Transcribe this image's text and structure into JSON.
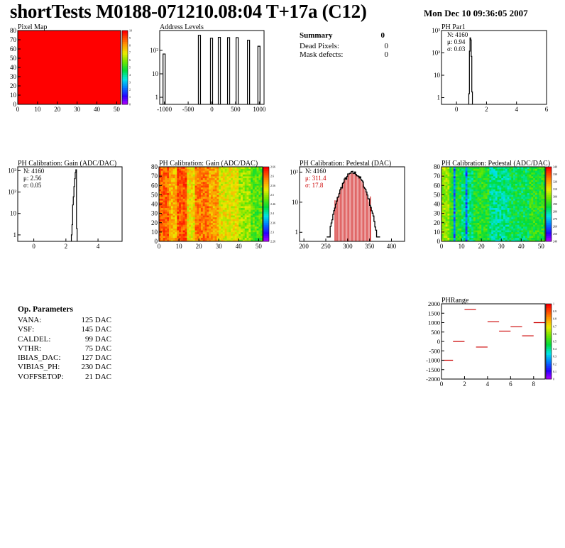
{
  "header": {
    "title": "shortTests M0188-071210.08:04 T+17a (C12)",
    "date": "Mon Dec 10 09:36:05 2007"
  },
  "summary": {
    "title": "Summary",
    "total": "0",
    "rows": [
      {
        "label": "Dead Pixels:",
        "value": "0"
      },
      {
        "label": "Mask defects:",
        "value": "0"
      }
    ]
  },
  "op_params": {
    "title": "Op. Parameters",
    "rows": [
      {
        "name": "VANA:",
        "value": "125 DAC"
      },
      {
        "name": "VSF:",
        "value": "145 DAC"
      },
      {
        "name": "CALDEL:",
        "value": "99 DAC"
      },
      {
        "name": "VTHR:",
        "value": "75 DAC"
      },
      {
        "name": "IBIAS_DAC:",
        "value": "127 DAC"
      },
      {
        "name": "VIBIAS_PH:",
        "value": "230 DAC"
      },
      {
        "name": "VOFFSETOP:",
        "value": "21 DAC"
      }
    ]
  },
  "chart_data": [
    {
      "id": "pixelmap",
      "type": "heatmap",
      "title": "Pixel Map",
      "xlim": [
        0,
        52
      ],
      "ylim": [
        0,
        80
      ],
      "x_ticks": [
        0,
        10,
        20,
        30,
        40,
        50
      ],
      "y_ticks": [
        0,
        10,
        20,
        30,
        40,
        50,
        60,
        70,
        80
      ],
      "fill_value": 10,
      "color": "#ff0000",
      "z_ticks": [
        "0",
        "1",
        "2",
        "3",
        "4",
        "5",
        "6",
        "7",
        "8",
        "9",
        "10"
      ]
    },
    {
      "id": "address",
      "type": "bar",
      "title": "Address Levels",
      "log_y": true,
      "xlim": [
        -1100,
        1100
      ],
      "ylim": [
        0.5,
        700
      ],
      "x_ticks": [
        "-1000",
        "-500",
        "0",
        "500",
        "1000"
      ],
      "y_ticks": [
        "1",
        "10",
        "10²"
      ],
      "peaks": [
        {
          "x": -1000,
          "y": 70
        },
        {
          "x": -255,
          "y": 440
        },
        {
          "x": 0,
          "y": 330
        },
        {
          "x": 165,
          "y": 360
        },
        {
          "x": 360,
          "y": 350
        },
        {
          "x": 540,
          "y": 350
        },
        {
          "x": 780,
          "y": 270
        },
        {
          "x": 1000,
          "y": 150
        }
      ]
    },
    {
      "id": "phpar1",
      "type": "bar",
      "title": "PH Par1",
      "log_y": true,
      "xlim": [
        -1,
        6
      ],
      "ylim": [
        0.5,
        1000
      ],
      "x_ticks": [
        "0",
        "2",
        "4",
        "6"
      ],
      "y_ticks": [
        "1",
        "10",
        "10²",
        "10³"
      ],
      "stats": [
        {
          "label": "N: 4160"
        },
        {
          "label": "μ: 0.94"
        },
        {
          "label": "σ: 0.03"
        }
      ],
      "x": [
        0.84,
        0.88,
        0.92,
        0.96,
        1.0,
        1.04
      ],
      "values": [
        1.5,
        120,
        470,
        380,
        70,
        1.8
      ]
    },
    {
      "id": "gain1d",
      "type": "bar",
      "title": "PH Calibration: Gain (ADC/DAC)",
      "log_y": true,
      "xlim": [
        -1,
        5.5
      ],
      "ylim": [
        0.5,
        1500
      ],
      "x_ticks": [
        "0",
        "2",
        "4"
      ],
      "y_ticks": [
        "1",
        "10",
        "10²",
        "10³"
      ],
      "stats": [
        {
          "label": "N: 4160"
        },
        {
          "label": "μ: 2.56"
        },
        {
          "label": "σ: 0.05"
        }
      ],
      "x": [
        2.36,
        2.4,
        2.44,
        2.48,
        2.52,
        2.56,
        2.6,
        2.64,
        2.68
      ],
      "values": [
        1,
        3,
        25,
        60,
        180,
        420,
        820,
        1100,
        2
      ]
    },
    {
      "id": "gain2d",
      "type": "heatmap",
      "title": "PH Calibration: Gain (ADC/DAC)",
      "xlim": [
        0,
        52
      ],
      "ylim": [
        0,
        80
      ],
      "x_ticks": [
        0,
        10,
        20,
        30,
        40,
        50
      ],
      "y_ticks": [
        0,
        10,
        20,
        30,
        40,
        50,
        60,
        70,
        80
      ],
      "z_ticks": [
        "2.26",
        "2.3",
        "2.36",
        "2.4",
        "2.46",
        "2.5",
        "2.56",
        "2.6",
        "2.66"
      ]
    },
    {
      "id": "pedestal1d",
      "type": "bar",
      "title": "PH Calibration: Pedestal (DAC)",
      "log_y": true,
      "xlim": [
        190,
        430
      ],
      "ylim": [
        0.5,
        150
      ],
      "x_ticks": [
        "200",
        "250",
        "300",
        "350",
        "400"
      ],
      "y_ticks": [
        "1",
        "10",
        "10²"
      ],
      "stats": [
        {
          "label": "N: 4160",
          "color": "#000000"
        },
        {
          "label": "μ: 311.4",
          "color": "#cc0000"
        },
        {
          "label": "σ: 17.8",
          "color": "#cc0000"
        }
      ],
      "mean": 311.4,
      "sigma": 17.8,
      "fit_range": [
        271,
        352
      ],
      "fit_color": "#cc0000"
    },
    {
      "id": "pedestal2d",
      "type": "heatmap",
      "title": "PH Calibration: Pedestal (ADC/DAC)",
      "xlim": [
        0,
        52
      ],
      "ylim": [
        0,
        80
      ],
      "x_ticks": [
        0,
        10,
        20,
        30,
        40,
        50
      ],
      "y_ticks": [
        0,
        10,
        20,
        30,
        40,
        50,
        60,
        70,
        80
      ],
      "z_ticks": [
        "240",
        "250",
        "260",
        "270",
        "280",
        "290",
        "300",
        "310",
        "320",
        "330",
        "340"
      ]
    },
    {
      "id": "phrange",
      "type": "scatter",
      "title": "PHRange",
      "xlim": [
        0,
        9
      ],
      "ylim": [
        -2000,
        2000
      ],
      "x_ticks": [
        "0",
        "2",
        "4",
        "6",
        "8"
      ],
      "y_ticks": [
        "-2000",
        "-1500",
        "-1000",
        "-500",
        "0",
        "500",
        "1000",
        "1500",
        "2000"
      ],
      "z_ticks": [
        "0",
        "0.1",
        "0.2",
        "0.3",
        "0.4",
        "0.5",
        "0.6",
        "0.7",
        "0.8",
        "0.9",
        "1"
      ],
      "x": [
        0,
        1,
        2,
        3,
        4,
        5,
        6,
        7,
        8,
        9
      ],
      "values": [
        -1000,
        0,
        1700,
        -300,
        1050,
        550,
        780,
        300,
        1000,
        -800
      ]
    }
  ]
}
